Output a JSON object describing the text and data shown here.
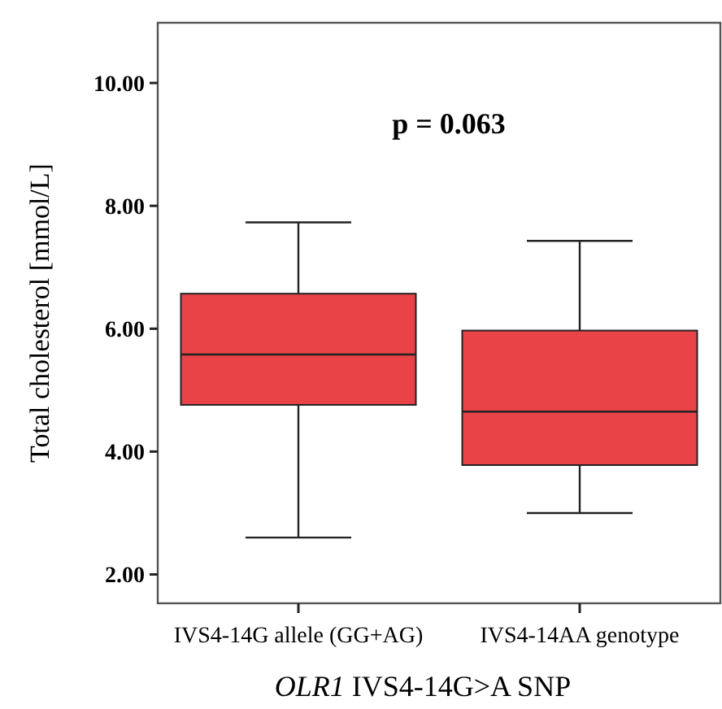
{
  "chart_data": {
    "type": "box",
    "ylabel": "Total cholesterol [mmol/L]",
    "xlabel": "OLR1 IVS4-14G>A SNP",
    "categories": [
      "IVS4-14G allele (GG+AG)",
      "IVS4-14AA genotype"
    ],
    "color": "#e94347",
    "ylim": [
      1.53,
      10.98
    ],
    "yticks": [
      {
        "value": 2,
        "label": "2.00"
      },
      {
        "value": 4,
        "label": "4.00"
      },
      {
        "value": 6,
        "label": "6.00"
      },
      {
        "value": 8,
        "label": "8.00"
      },
      {
        "value": 10,
        "label": "10.00"
      }
    ],
    "boxes": [
      {
        "low": 2.6,
        "q1": 4.76,
        "median": 5.58,
        "q3": 6.57,
        "high": 7.73
      },
      {
        "low": 3.0,
        "q1": 3.78,
        "median": 4.65,
        "q3": 5.97,
        "high": 7.43
      }
    ],
    "annotations": [
      "p = 0.063"
    ],
    "grid": false
  }
}
